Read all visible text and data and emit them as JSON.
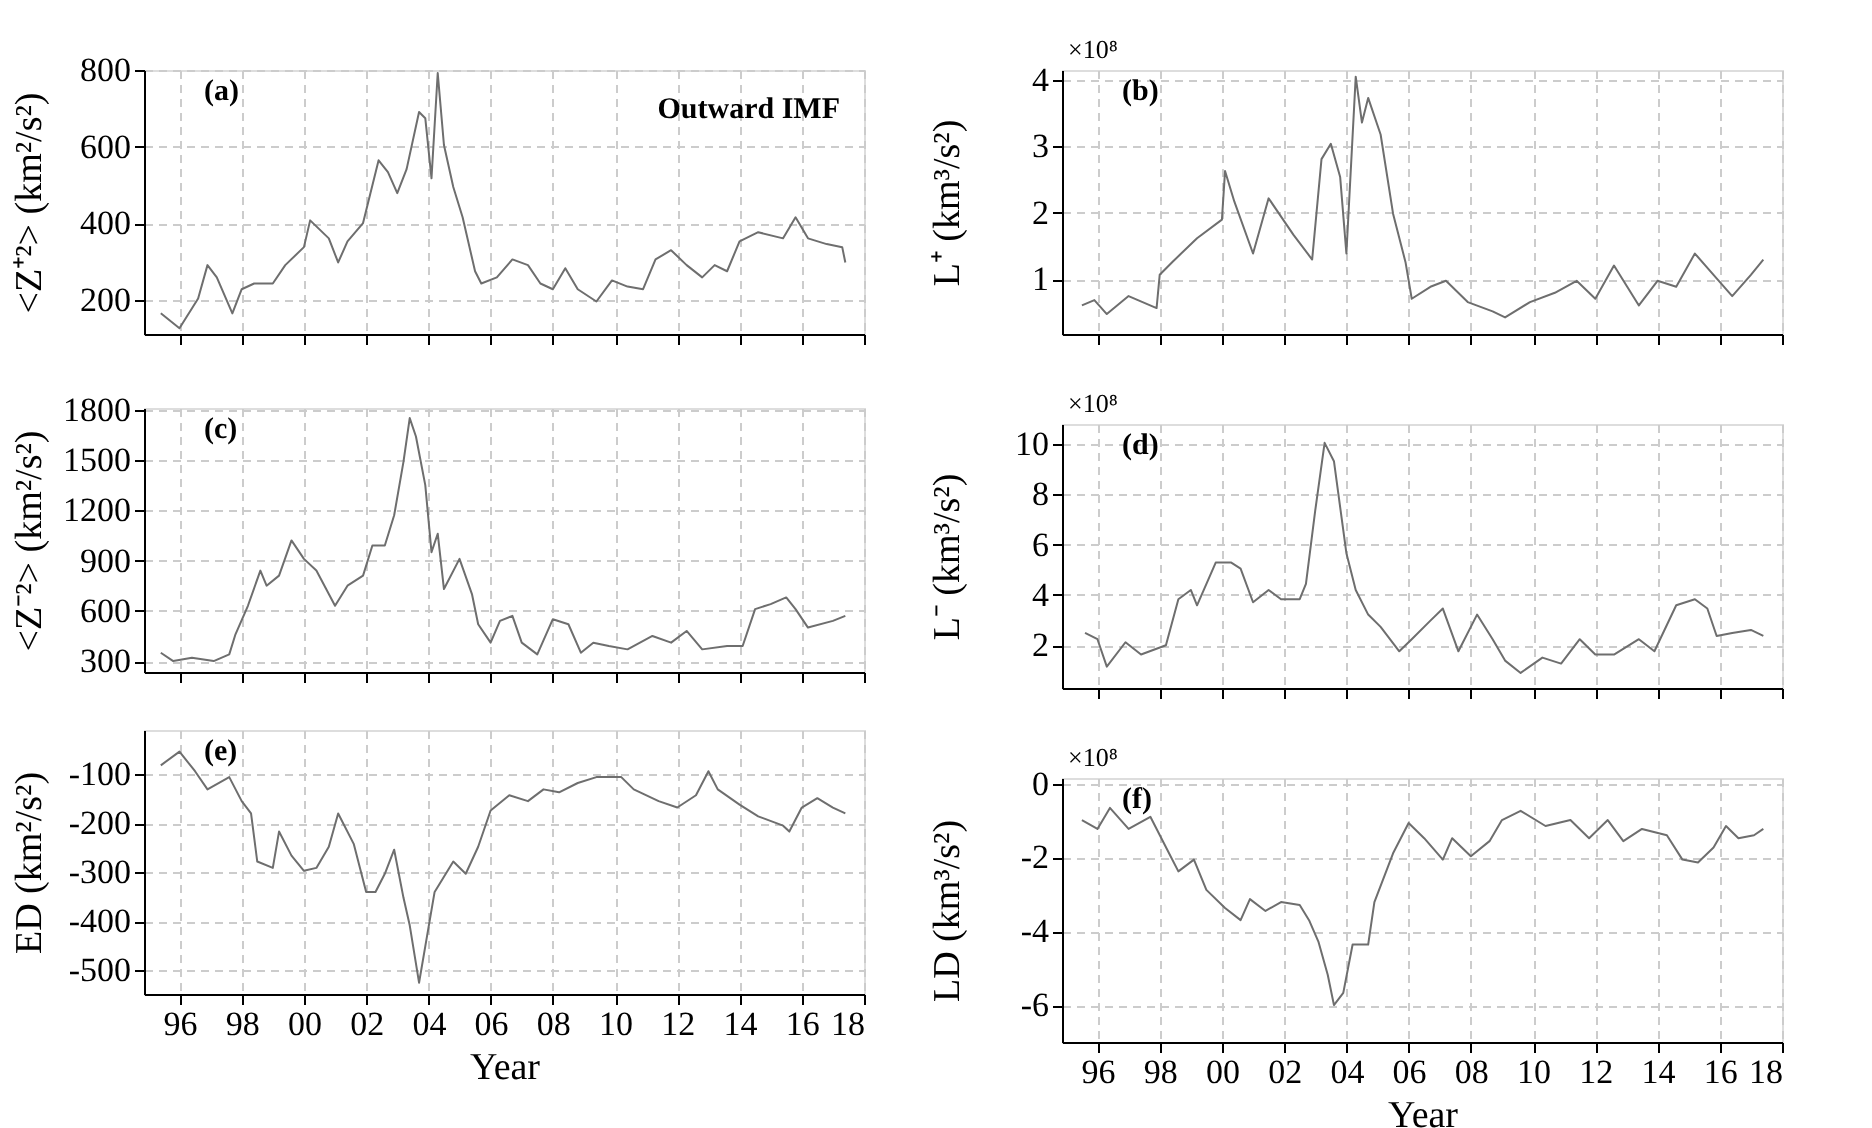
{
  "chart_data": [
    {
      "type": "line",
      "ylabel": "<Z⁺²> (km²/s²)",
      "annotations": [
        "(a)",
        "Outward IMF"
      ],
      "grid": true,
      "tick_labels": "y",
      "xlim": [
        1994.86,
        2018
      ],
      "ylim": [
        110,
        800
      ],
      "yticks": [
        200,
        400,
        600,
        800
      ],
      "xticks": [
        {
          "value": 1996,
          "label": null
        },
        {
          "value": 1998,
          "label": null
        },
        {
          "value": 2000,
          "label": null
        },
        {
          "value": 2002,
          "label": null
        },
        {
          "value": 2004,
          "label": null
        },
        {
          "value": 2006,
          "label": null
        },
        {
          "value": 2008,
          "label": null
        },
        {
          "value": 2010,
          "label": null
        },
        {
          "value": 2012,
          "label": null
        },
        {
          "value": 2014,
          "label": null
        },
        {
          "value": 2016,
          "label": null
        },
        {
          "value": 2018,
          "label": null
        }
      ],
      "x": [
        1995.4,
        1996.0,
        1996.6,
        1996.9,
        1997.2,
        1997.7,
        1998.0,
        1998.4,
        1999.0,
        1999.4,
        2000.0,
        2000.2,
        2000.8,
        2001.1,
        2001.4,
        2001.9,
        2002.4,
        2002.7,
        2003.0,
        2003.3,
        2003.7,
        2003.9,
        2004.1,
        2004.3,
        2004.5,
        2004.8,
        2005.1,
        2005.5,
        2005.7,
        2006.2,
        2006.7,
        2007.2,
        2007.6,
        2008.0,
        2008.4,
        2008.8,
        2009.4,
        2009.9,
        2010.4,
        2010.9,
        2011.3,
        2011.8,
        2012.3,
        2012.8,
        2013.2,
        2013.6,
        2014.0,
        2014.6,
        2015.4,
        2015.8,
        2016.2,
        2016.8,
        2017.3,
        2017.4
      ],
      "series": [
        {
          "color": "#6e6e6e",
          "values": [
            164,
            125,
            203,
            290,
            258,
            164,
            227,
            242,
            242,
            290,
            337,
            407,
            360,
            297,
            352,
            400,
            564,
            533,
            478,
            541,
            690,
            674,
            517,
            792,
            604,
            494,
            415,
            274,
            242,
            258,
            305,
            290,
            242,
            227,
            282,
            227,
            195,
            250,
            234,
            227,
            305,
            329,
            290,
            258,
            290,
            274,
            352,
            376,
            360,
            415,
            360,
            345,
            337,
            297
          ]
        }
      ]
    },
    {
      "type": "line",
      "ylabel": "L⁺ (km³/s²)",
      "annotations": [
        "(b)",
        "×10⁸"
      ],
      "grid": true,
      "tick_labels": "y",
      "xlim": [
        1994.86,
        2018
      ],
      "ylim": [
        0.18,
        4.15
      ],
      "yticks": [
        1,
        2,
        3,
        4
      ],
      "xticks": [
        {
          "value": 1996,
          "label": null
        },
        {
          "value": 1998,
          "label": null
        },
        {
          "value": 2000,
          "label": null
        },
        {
          "value": 2002,
          "label": null
        },
        {
          "value": 2004,
          "label": null
        },
        {
          "value": 2006,
          "label": null
        },
        {
          "value": 2008,
          "label": null
        },
        {
          "value": 2010,
          "label": null
        },
        {
          "value": 2012,
          "label": null
        },
        {
          "value": 2014,
          "label": null
        },
        {
          "value": 2016,
          "label": null
        },
        {
          "value": 2018,
          "label": null
        }
      ],
      "x": [
        1995.5,
        1995.9,
        1996.3,
        1997.0,
        1997.9,
        1998.0,
        1998.4,
        1999.2,
        2000.0,
        2000.1,
        2000.4,
        2001.0,
        2001.5,
        2002.3,
        2002.9,
        2003.2,
        2003.5,
        2003.8,
        2004.0,
        2004.3,
        2004.5,
        2004.7,
        2005.1,
        2005.5,
        2005.9,
        2006.1,
        2006.7,
        2007.2,
        2007.9,
        2008.7,
        2009.1,
        2009.9,
        2010.7,
        2011.4,
        2012.0,
        2012.6,
        2013.4,
        2014.0,
        2014.6,
        2015.2,
        2015.8,
        2016.4,
        2017.0,
        2017.4
      ],
      "series": [
        {
          "color": "#6e6e6e",
          "values": [
            0.61,
            0.69,
            0.48,
            0.75,
            0.57,
            1.07,
            1.26,
            1.62,
            1.9,
            2.63,
            2.17,
            1.39,
            2.22,
            1.67,
            1.3,
            2.81,
            3.04,
            2.54,
            1.39,
            4.05,
            3.36,
            3.73,
            3.18,
            1.99,
            1.26,
            0.71,
            0.89,
            0.98,
            0.66,
            0.52,
            0.43,
            0.66,
            0.8,
            0.98,
            0.71,
            1.21,
            0.61,
            0.98,
            0.89,
            1.39,
            1.07,
            0.75,
            1.07,
            1.3
          ]
        }
      ]
    },
    {
      "type": "line",
      "ylabel": "<Z⁻²> (km²/s²)",
      "annotations": [
        "(c)"
      ],
      "grid": true,
      "tick_labels": "y",
      "xlim": [
        1994.86,
        2018
      ],
      "ylim": [
        235,
        1810
      ],
      "yticks": [
        300,
        600,
        900,
        1200,
        1500,
        1800
      ],
      "xticks": [
        {
          "value": 1996,
          "label": null
        },
        {
          "value": 1998,
          "label": null
        },
        {
          "value": 2000,
          "label": null
        },
        {
          "value": 2002,
          "label": null
        },
        {
          "value": 2004,
          "label": null
        },
        {
          "value": 2006,
          "label": null
        },
        {
          "value": 2008,
          "label": null
        },
        {
          "value": 2010,
          "label": null
        },
        {
          "value": 2012,
          "label": null
        },
        {
          "value": 2014,
          "label": null
        },
        {
          "value": 2016,
          "label": null
        },
        {
          "value": 2018,
          "label": null
        }
      ],
      "x": [
        1995.4,
        1995.8,
        1996.4,
        1997.1,
        1997.6,
        1997.8,
        1998.2,
        1998.6,
        1998.8,
        1999.2,
        1999.6,
        2000.0,
        2000.4,
        2001.0,
        2001.4,
        2001.9,
        2002.2,
        2002.6,
        2002.9,
        2003.2,
        2003.4,
        2003.6,
        2003.9,
        2004.1,
        2004.3,
        2004.5,
        2005.0,
        2005.4,
        2005.6,
        2006.0,
        2006.3,
        2006.7,
        2007.0,
        2007.5,
        2008.0,
        2008.5,
        2008.9,
        2009.3,
        2009.8,
        2010.4,
        2011.2,
        2011.8,
        2012.3,
        2012.8,
        2013.6,
        2014.1,
        2014.5,
        2015.0,
        2015.5,
        2015.8,
        2016.2,
        2017.0,
        2017.4
      ],
      "series": [
        {
          "color": "#6e6e6e",
          "values": [
            350,
            300,
            320,
            300,
            340,
            460,
            630,
            840,
            750,
            810,
            1020,
            910,
            840,
            630,
            750,
            810,
            990,
            990,
            1170,
            1490,
            1750,
            1640,
            1350,
            950,
            1060,
            730,
            910,
            700,
            520,
            410,
            540,
            570,
            410,
            340,
            550,
            520,
            350,
            410,
            390,
            370,
            450,
            410,
            480,
            370,
            390,
            390,
            610,
            640,
            680,
            610,
            500,
            540,
            570
          ]
        }
      ]
    },
    {
      "type": "line",
      "ylabel": "L⁻ (km³/s²)",
      "annotations": [
        "(d)",
        "×10⁸"
      ],
      "grid": true,
      "tick_labels": "y",
      "xlim": [
        1994.86,
        2018
      ],
      "ylim": [
        0.3,
        10.8
      ],
      "yticks": [
        2,
        4,
        6,
        8,
        10
      ],
      "xticks": [
        {
          "value": 1996,
          "label": null
        },
        {
          "value": 1998,
          "label": null
        },
        {
          "value": 2000,
          "label": null
        },
        {
          "value": 2002,
          "label": null
        },
        {
          "value": 2004,
          "label": null
        },
        {
          "value": 2006,
          "label": null
        },
        {
          "value": 2008,
          "label": null
        },
        {
          "value": 2010,
          "label": null
        },
        {
          "value": 2012,
          "label": null
        },
        {
          "value": 2014,
          "label": null
        },
        {
          "value": 2016,
          "label": null
        },
        {
          "value": 2018,
          "label": null
        }
      ],
      "x": [
        1995.6,
        1996.0,
        1996.3,
        1996.9,
        1997.4,
        1998.2,
        1998.6,
        1999.0,
        1999.2,
        1999.8,
        2000.3,
        2000.6,
        2001.0,
        2001.5,
        2001.9,
        2002.5,
        2002.7,
        2003.0,
        2003.3,
        2003.6,
        2004.0,
        2004.3,
        2004.7,
        2005.1,
        2005.7,
        2006.1,
        2006.7,
        2007.1,
        2007.6,
        2008.2,
        2008.7,
        2009.1,
        2009.6,
        2010.3,
        2010.9,
        2011.5,
        2012.0,
        2012.6,
        2013.4,
        2013.9,
        2014.6,
        2015.2,
        2015.6,
        2015.9,
        2016.4,
        2017.0,
        2017.4
      ],
      "series": [
        {
          "color": "#6e6e6e",
          "values": [
            2.49,
            2.24,
            1.15,
            2.12,
            1.63,
            2.0,
            3.83,
            4.2,
            3.59,
            5.29,
            5.29,
            5.05,
            3.71,
            4.2,
            3.83,
            3.83,
            4.44,
            7.37,
            10.05,
            9.32,
            5.66,
            4.2,
            3.22,
            2.73,
            1.76,
            2.24,
            2.98,
            3.46,
            1.76,
            3.22,
            2.24,
            1.39,
            0.9,
            1.51,
            1.27,
            2.24,
            1.63,
            1.63,
            2.24,
            1.76,
            3.59,
            3.83,
            3.46,
            2.37,
            2.49,
            2.61,
            2.37
          ]
        }
      ]
    },
    {
      "type": "line",
      "ylabel": "ED (km²/s²)",
      "xlabel": "Year",
      "annotations": [
        "(e)"
      ],
      "grid": true,
      "xlim": [
        1994.86,
        2018
      ],
      "ylim": [
        -548,
        -10
      ],
      "yticks": [
        -500,
        -400,
        -300,
        -200,
        -100
      ],
      "xticks": [
        {
          "value": 1996,
          "label": "96"
        },
        {
          "value": 1998,
          "label": "98"
        },
        {
          "value": 2000,
          "label": "00"
        },
        {
          "value": 2002,
          "label": "02"
        },
        {
          "value": 2004,
          "label": "04"
        },
        {
          "value": 2006,
          "label": "06"
        },
        {
          "value": 2008,
          "label": "08"
        },
        {
          "value": 2010,
          "label": "10"
        },
        {
          "value": 2012,
          "label": "12"
        },
        {
          "value": 2014,
          "label": "14"
        },
        {
          "value": 2016,
          "label": "16"
        },
        {
          "value": 2018,
          "label": "18"
        }
      ],
      "x": [
        1995.4,
        1996.0,
        1996.5,
        1996.9,
        1997.6,
        1998.0,
        1998.3,
        1998.5,
        1999.0,
        1999.2,
        1999.6,
        2000.0,
        2000.4,
        2000.8,
        2001.1,
        2001.6,
        2002.0,
        2002.3,
        2002.6,
        2002.9,
        2003.2,
        2003.4,
        2003.7,
        2003.9,
        2004.2,
        2004.8,
        2005.2,
        2005.6,
        2006.0,
        2006.6,
        2007.2,
        2007.7,
        2008.2,
        2008.8,
        2009.4,
        2010.2,
        2010.6,
        2011.4,
        2012.0,
        2012.6,
        2013.0,
        2013.3,
        2014.0,
        2014.6,
        2015.4,
        2015.6,
        2016.0,
        2016.5,
        2017.0,
        2017.4
      ],
      "series": [
        {
          "color": "#6e6e6e",
          "values": [
            -82,
            -54,
            -94,
            -131,
            -106,
            -155,
            -180,
            -278,
            -291,
            -217,
            -266,
            -297,
            -291,
            -248,
            -180,
            -242,
            -340,
            -340,
            -303,
            -254,
            -352,
            -408,
            -525,
            -451,
            -340,
            -278,
            -303,
            -248,
            -174,
            -143,
            -155,
            -131,
            -137,
            -118,
            -106,
            -106,
            -131,
            -155,
            -168,
            -143,
            -94,
            -131,
            -162,
            -186,
            -205,
            -217,
            -168,
            -149,
            -168,
            -180
          ]
        }
      ]
    },
    {
      "type": "line",
      "ylabel": "LD (km³/s²)",
      "xlabel": "Year",
      "annotations": [
        "(f)",
        "×10⁸"
      ],
      "grid": true,
      "xlim": [
        1994.86,
        2018
      ],
      "ylim": [
        -7,
        0.15
      ],
      "yticks": [
        -6,
        -4,
        -2,
        0
      ],
      "xticks": [
        {
          "value": 1996,
          "label": "96"
        },
        {
          "value": 1998,
          "label": "98"
        },
        {
          "value": 2000,
          "label": "00"
        },
        {
          "value": 2002,
          "label": "02"
        },
        {
          "value": 2004,
          "label": "04"
        },
        {
          "value": 2006,
          "label": "06"
        },
        {
          "value": 2008,
          "label": "08"
        },
        {
          "value": 2010,
          "label": "10"
        },
        {
          "value": 2012,
          "label": "12"
        },
        {
          "value": 2014,
          "label": "14"
        },
        {
          "value": 2016,
          "label": "16"
        },
        {
          "value": 2018,
          "label": "18"
        }
      ],
      "x": [
        1995.5,
        1996.0,
        1996.4,
        1997.0,
        1997.7,
        1998.3,
        1998.6,
        1999.1,
        1999.5,
        2000.1,
        2000.6,
        2000.9,
        2001.4,
        2001.9,
        2002.5,
        2002.8,
        2003.1,
        2003.4,
        2003.6,
        2003.9,
        2004.2,
        2004.7,
        2004.9,
        2005.5,
        2006.0,
        2006.5,
        2007.1,
        2007.4,
        2008.0,
        2008.6,
        2009.0,
        2009.6,
        2010.4,
        2011.2,
        2011.8,
        2012.4,
        2012.9,
        2013.5,
        2014.3,
        2014.8,
        2015.3,
        2015.8,
        2016.2,
        2016.6,
        2017.1,
        2017.4
      ],
      "series": [
        {
          "color": "#6e6e6e",
          "values": [
            -0.99,
            -1.23,
            -0.66,
            -1.23,
            -0.9,
            -1.89,
            -2.38,
            -2.06,
            -2.88,
            -3.37,
            -3.7,
            -3.13,
            -3.45,
            -3.21,
            -3.29,
            -3.7,
            -4.28,
            -5.18,
            -6.0,
            -5.67,
            -4.36,
            -4.36,
            -3.21,
            -1.89,
            -1.07,
            -1.48,
            -2.06,
            -1.48,
            -1.97,
            -1.56,
            -0.99,
            -0.74,
            -1.15,
            -0.99,
            -1.48,
            -0.99,
            -1.56,
            -1.23,
            -1.4,
            -2.06,
            -2.14,
            -1.73,
            -1.15,
            -1.48,
            -1.4,
            -1.23
          ]
        }
      ]
    }
  ]
}
